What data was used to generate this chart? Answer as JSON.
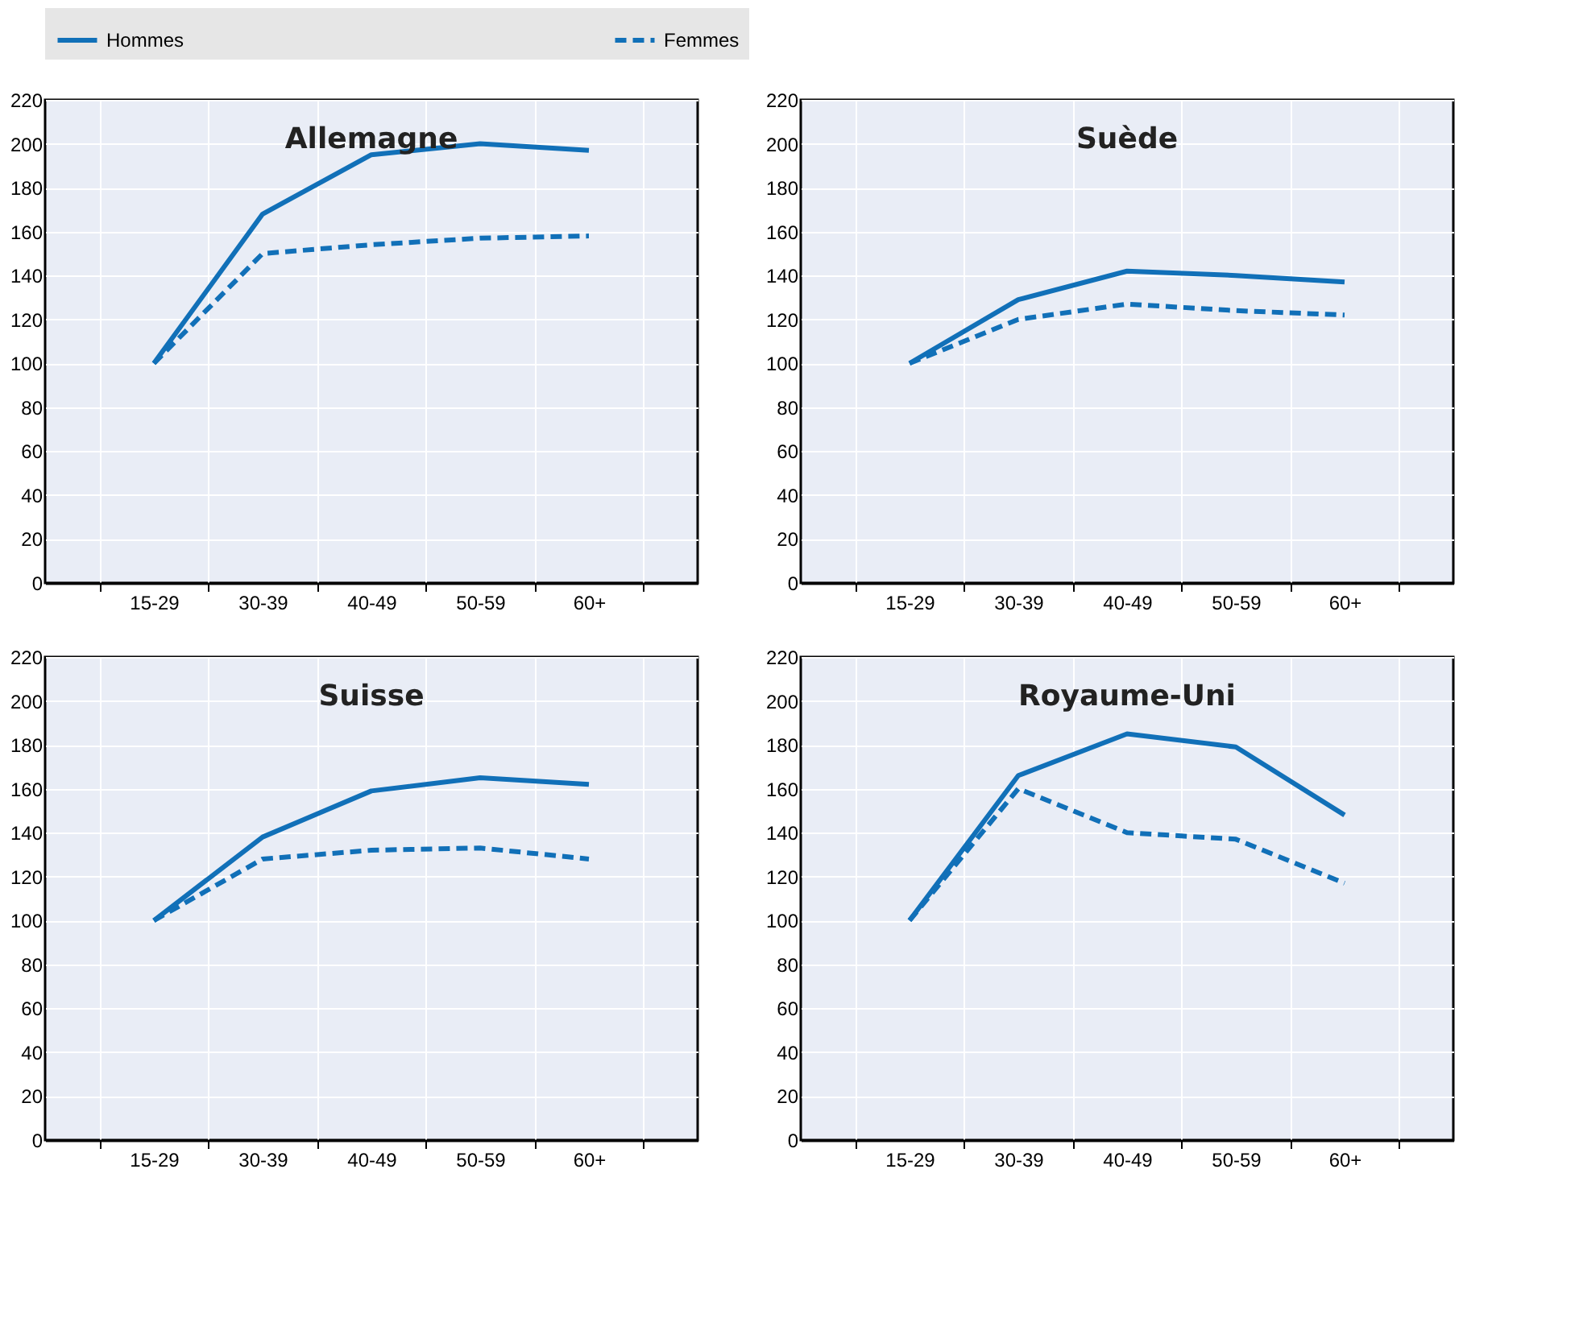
{
  "chart_data": [
    {
      "type": "line",
      "title": "Allemagne",
      "categories": [
        "15-29",
        "30-39",
        "40-49",
        "50-59",
        "60+"
      ],
      "ylim": [
        0,
        220
      ],
      "yticks": [
        0,
        20,
        40,
        60,
        80,
        100,
        120,
        140,
        160,
        180,
        200,
        220
      ],
      "grid": true,
      "legend": "top",
      "marker": "none",
      "series": [
        {
          "name": "Hommes",
          "color": "#1170b8",
          "line_style": "solid",
          "values": [
            100,
            168,
            195,
            200,
            197
          ]
        },
        {
          "name": "Femmes",
          "color": "#1170b8",
          "line_style": "dashed",
          "values": [
            100,
            150,
            154,
            157,
            158
          ]
        }
      ]
    },
    {
      "type": "line",
      "title": "Suède",
      "categories": [
        "15-29",
        "30-39",
        "40-49",
        "50-59",
        "60+"
      ],
      "ylim": [
        0,
        220
      ],
      "yticks": [
        0,
        20,
        40,
        60,
        80,
        100,
        120,
        140,
        160,
        180,
        200,
        220
      ],
      "grid": true,
      "legend": "top",
      "marker": "none",
      "series": [
        {
          "name": "Hommes",
          "color": "#1170b8",
          "line_style": "solid",
          "values": [
            100,
            129,
            142,
            140,
            137
          ]
        },
        {
          "name": "Femmes",
          "color": "#1170b8",
          "line_style": "dashed",
          "values": [
            100,
            120,
            127,
            124,
            122
          ]
        }
      ]
    },
    {
      "type": "line",
      "title": "Suisse",
      "categories": [
        "15-29",
        "30-39",
        "40-49",
        "50-59",
        "60+"
      ],
      "ylim": [
        0,
        220
      ],
      "yticks": [
        0,
        20,
        40,
        60,
        80,
        100,
        120,
        140,
        160,
        180,
        200,
        220
      ],
      "grid": true,
      "legend": "top",
      "marker": "none",
      "series": [
        {
          "name": "Hommes",
          "color": "#1170b8",
          "line_style": "solid",
          "values": [
            100,
            138,
            159,
            165,
            162
          ]
        },
        {
          "name": "Femmes",
          "color": "#1170b8",
          "line_style": "dashed",
          "values": [
            100,
            128,
            132,
            133,
            128
          ]
        }
      ]
    },
    {
      "type": "line",
      "title": "Royaume-Uni",
      "categories": [
        "15-29",
        "30-39",
        "40-49",
        "50-59",
        "60+"
      ],
      "ylim": [
        0,
        220
      ],
      "yticks": [
        0,
        20,
        40,
        60,
        80,
        100,
        120,
        140,
        160,
        180,
        200,
        220
      ],
      "grid": true,
      "legend": "top",
      "marker": "none",
      "series": [
        {
          "name": "Hommes",
          "color": "#1170b8",
          "line_style": "solid",
          "values": [
            100,
            166,
            185,
            179,
            148
          ]
        },
        {
          "name": "Femmes",
          "color": "#1170b8",
          "line_style": "dashed",
          "values": [
            100,
            160,
            140,
            137,
            117
          ]
        }
      ]
    }
  ]
}
